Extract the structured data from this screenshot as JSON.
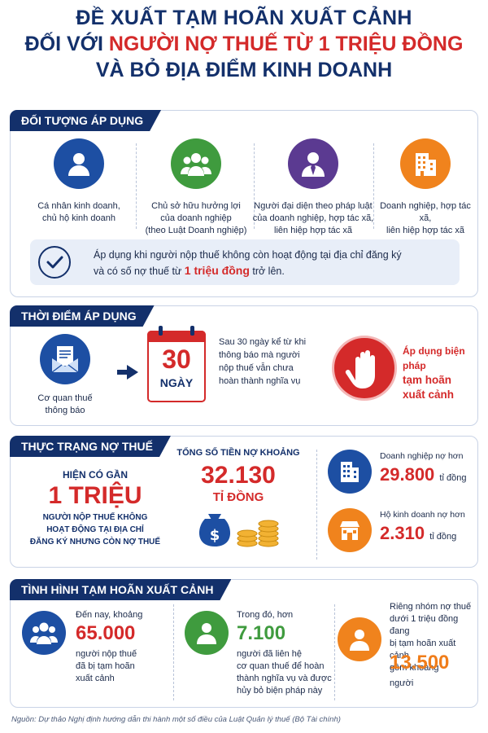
{
  "title": {
    "line1": "ĐỀ XUẤT TẠM HOÃN XUẤT CẢNH",
    "line2_prefix": "ĐỐI VỚI ",
    "line2_highlight": "NGƯỜI NỢ THUẾ TỪ 1 TRIỆU ĐỒNG",
    "line3": "VÀ BỎ ĐỊA ĐIỂM KINH DOANH"
  },
  "section1": {
    "header": "ĐỐI TƯỢNG ÁP DỤNG",
    "items": [
      {
        "icon": "person-icon",
        "line1": "Cá nhân kinh doanh,",
        "line2": "chủ hộ kinh doanh",
        "line3": ""
      },
      {
        "icon": "group-icon",
        "line1": "Chủ sở hữu hưởng lợi",
        "line2": "của doanh nghiệp",
        "line3": "(theo Luật Doanh nghiệp)"
      },
      {
        "icon": "representative-icon",
        "line1": "Người đại diện theo pháp luật",
        "line2": "của doanh nghiệp, hợp tác xã,",
        "line3": "liên hiệp hợp tác xã"
      },
      {
        "icon": "building-icon",
        "line1": "Doanh nghiệp, hợp tác xã,",
        "line2": "liên hiệp hợp tác xã",
        "line3": ""
      }
    ],
    "note_line1": "Áp dụng khi người nộp thuế không còn hoạt động tại địa chỉ đăng ký",
    "note_line2_prefix": "và có số nợ thuế từ ",
    "note_highlight": "1 triệu đồng",
    "note_line2_suffix": " trở lên."
  },
  "section2": {
    "header": "THỜI ĐIỂM ÁP DỤNG",
    "agency_line1": "Cơ quan thuế",
    "agency_line2": "thông báo",
    "calendar_number": "30",
    "calendar_unit": "NGÀY",
    "desc_lines": [
      "Sau 30 ngày kể từ khi",
      "thông báo mà người",
      "nộp thuế vẫn chưa",
      "hoàn thành nghĩa vụ"
    ],
    "apply_line1": "Áp dụng biện pháp",
    "apply_line2": "tạm hoãn",
    "apply_line3": "xuất cảnh"
  },
  "section3": {
    "header": "THỰC TRẠNG NỢ THUẾ",
    "left_intro": "HIỆN CÓ GẦN",
    "left_big": "1 TRIỆU",
    "left_lines": [
      "NGƯỜI NỘP THUẾ KHÔNG",
      "HOẠT ĐỘNG TẠI ĐỊA CHỈ",
      "ĐĂNG KÝ NHƯNG CÒN NỢ THUẾ"
    ],
    "mid_label": "TỔNG SỐ TIỀN NỢ KHOẢNG",
    "mid_value": "32.130",
    "mid_unit": "TỈ ĐỒNG",
    "right": [
      {
        "icon": "office-building-icon",
        "label": "Doanh nghiệp nợ hơn",
        "value": "29.800",
        "unit": "tỉ đồng"
      },
      {
        "icon": "shop-icon",
        "label": "Hộ kinh doanh nợ hơn",
        "value": "2.310",
        "unit": "tỉ đồng"
      }
    ]
  },
  "section4": {
    "header": "TÌNH HÌNH TẠM HOÃN XUẤT CẢNH",
    "col1_intro": "Đến nay, khoảng",
    "col1_value": "65.000",
    "col1_lines": [
      "người nộp thuế",
      "đã bị tạm hoãn",
      "xuất cảnh"
    ],
    "col2_intro": "Trong đó, hơn",
    "col2_value": "7.100",
    "col2_lines": [
      "người đã liên hệ",
      "cơ quan thuế để hoàn",
      "thành nghĩa vụ và được",
      "hủy bỏ biện pháp này"
    ],
    "col3_lines": [
      "Riêng nhóm nợ thuế",
      "dưới 1 triệu đồng đang",
      "bị tạm hoãn xuất cảnh",
      "gồm khoảng"
    ],
    "col3_value": "13.500",
    "col3_unit": "người"
  },
  "source": "Nguồn: Dự thảo Nghị định hướng dẫn thi hành một số điều của Luật Quản lý thuế (Bộ Tài chính)",
  "colors": {
    "navy": "#13306b",
    "red": "#d42a2a",
    "orange": "#f07d1a",
    "green": "#3f9b3e",
    "purple": "#5b3a91",
    "blue": "#1d4fa3"
  }
}
